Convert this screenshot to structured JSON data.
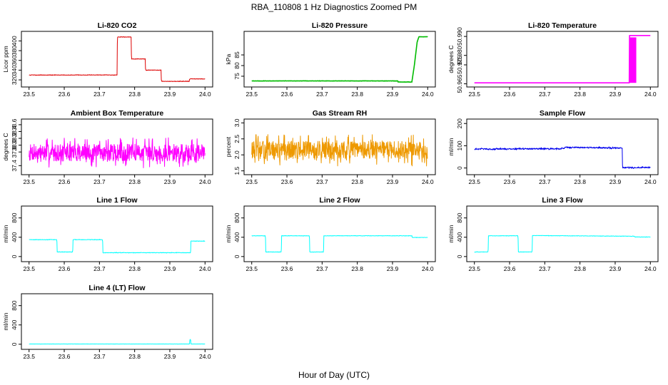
{
  "figure": {
    "title": "RBA_110808  1 Hz Diagnostics Zoomed PM",
    "xlabel": "Hour of Day (UTC)"
  },
  "chart_data": [
    {
      "type": "line",
      "title": "Li-820 CO2",
      "ylabel": "Licor ppm",
      "color": "#dd0000",
      "xlim": [
        23.5,
        24.0
      ],
      "ylim": [
        310,
        415
      ],
      "xticks": [
        "23.5",
        "23.6",
        "23.7",
        "23.8",
        "23.9",
        "24.0"
      ],
      "yticks": [
        "320",
        "340",
        "360",
        "380",
        "400"
      ],
      "noise": 0.8,
      "series": [
        {
          "name": "CO2",
          "x": [
            23.5,
            23.75,
            23.751,
            23.79,
            23.791,
            23.83,
            23.831,
            23.875,
            23.876,
            23.955,
            23.956,
            24.0
          ],
          "values": [
            330,
            330,
            408,
            408,
            363,
            363,
            340,
            340,
            317,
            317,
            322,
            322
          ]
        }
      ]
    },
    {
      "type": "line",
      "title": "Li-820 Pressure",
      "ylabel": "kPa",
      "color": "#00bb00",
      "xlim": [
        23.5,
        24.0
      ],
      "ylim": [
        71,
        95
      ],
      "xticks": [
        "23.5",
        "23.6",
        "23.7",
        "23.8",
        "23.9",
        "24.0"
      ],
      "yticks": [
        "75",
        "80",
        "85"
      ],
      "noise": 0.1,
      "series": [
        {
          "name": "Pressure",
          "x": [
            23.5,
            23.915,
            23.915,
            23.955,
            23.962,
            23.97,
            23.975,
            24.0
          ],
          "values": [
            72.8,
            72.8,
            72.3,
            72.3,
            80,
            91,
            93.5,
            93.5
          ]
        }
      ]
    },
    {
      "type": "line",
      "title": "Li-820 Temperature",
      "ylabel": "degrees C",
      "color": "#ff00ff",
      "xlim": [
        23.5,
        24.0
      ],
      "ylim": [
        50.9645,
        50.9915
      ],
      "xticks": [
        "23.5",
        "23.6",
        "23.7",
        "23.8",
        "23.9",
        "24.0"
      ],
      "yticks": [
        "50.965",
        "50.975",
        "50.980",
        "50.990"
      ],
      "noise": 0,
      "series": [
        {
          "name": "Temperature",
          "x": [
            23.5,
            23.94,
            23.94,
            23.96,
            23.96,
            24.0
          ],
          "values": [
            50.9655,
            50.9655,
            50.9905,
            50.9905,
            50.9905,
            50.9905
          ]
        }
      ],
      "band": {
        "x0": 23.94,
        "x1": 23.96,
        "y0": 50.9655,
        "y1": 50.9895
      }
    },
    {
      "type": "line",
      "title": "Ambient Box Temperature",
      "ylabel": "degrees C",
      "color": "#ff00ff",
      "xlim": [
        23.5,
        24.0
      ],
      "ylim": [
        37.2,
        38.7
      ],
      "xticks": [
        "23.5",
        "23.6",
        "23.7",
        "23.8",
        "23.9",
        "24.0"
      ],
      "yticks": [
        "37.4",
        "37.8",
        "38.0",
        "38.2",
        "38.4",
        "38.6"
      ],
      "noise": 0.45,
      "noise_seed": 7,
      "series": [
        {
          "name": "Box Temperature",
          "x": [
            23.5,
            24.0
          ],
          "values": [
            37.78,
            37.78
          ]
        }
      ]
    },
    {
      "type": "line",
      "title": "Gas Stream RH",
      "ylabel": "percent",
      "color": "#ee9900",
      "xlim": [
        23.5,
        24.0
      ],
      "ylim": [
        1.45,
        3.05
      ],
      "xticks": [
        "23.5",
        "23.6",
        "23.7",
        "23.8",
        "23.9",
        "24.0"
      ],
      "yticks": [
        "1.5",
        "2.0",
        "2.5",
        "3.0"
      ],
      "noise": 0.5,
      "noise_seed": 13,
      "series": [
        {
          "name": "RH",
          "x": [
            23.5,
            24.0
          ],
          "values": [
            2.15,
            2.15
          ]
        }
      ]
    },
    {
      "type": "line",
      "title": "Sample Flow",
      "ylabel": "ml/min",
      "color": "#0000ee",
      "xlim": [
        23.5,
        24.0
      ],
      "ylim": [
        -20,
        210
      ],
      "xticks": [
        "23.5",
        "23.6",
        "23.7",
        "23.8",
        "23.9",
        "24.0"
      ],
      "yticks": [
        "0",
        "100",
        "200"
      ],
      "noise": 5,
      "series": [
        {
          "name": "Sample Flow",
          "x": [
            23.5,
            23.75,
            23.76,
            23.92,
            23.921,
            24.0
          ],
          "values": [
            85,
            87,
            93,
            90,
            2,
            2
          ]
        }
      ]
    },
    {
      "type": "line",
      "title": "Line 1 Flow",
      "ylabel": "ml/min",
      "color": "#00ffff",
      "xlim": [
        23.5,
        24.0
      ],
      "ylim": [
        -60,
        1000
      ],
      "xticks": [
        "23.5",
        "23.6",
        "23.7",
        "23.8",
        "23.9",
        "24.0"
      ],
      "yticks": [
        "0",
        "400",
        "800"
      ],
      "noise": 8,
      "series": [
        {
          "name": "Line 1",
          "x": [
            23.5,
            23.579,
            23.58,
            23.624,
            23.625,
            23.709,
            23.71,
            23.959,
            23.96,
            24.0
          ],
          "values": [
            350,
            350,
            95,
            95,
            350,
            350,
            80,
            80,
            320,
            320
          ]
        }
      ]
    },
    {
      "type": "line",
      "title": "Line 2 Flow",
      "ylabel": "ml/min",
      "color": "#00ffff",
      "xlim": [
        23.5,
        24.0
      ],
      "ylim": [
        -60,
        1000
      ],
      "xticks": [
        "23.5",
        "23.6",
        "23.7",
        "23.8",
        "23.9",
        "24.0"
      ],
      "yticks": [
        "0",
        "400",
        "800"
      ],
      "noise": 6,
      "series": [
        {
          "name": "Line 2",
          "x": [
            23.5,
            23.539,
            23.54,
            23.584,
            23.585,
            23.664,
            23.665,
            23.704,
            23.705,
            23.955,
            23.956,
            24.0
          ],
          "values": [
            430,
            430,
            95,
            95,
            430,
            430,
            95,
            95,
            430,
            430,
            395,
            395
          ]
        }
      ]
    },
    {
      "type": "line",
      "title": "Line 3 Flow",
      "ylabel": "ml/min",
      "color": "#00ffff",
      "xlim": [
        23.5,
        24.0
      ],
      "ylim": [
        -60,
        1000
      ],
      "xticks": [
        "23.5",
        "23.6",
        "23.7",
        "23.8",
        "23.9",
        "24.0"
      ],
      "yticks": [
        "0",
        "400",
        "800"
      ],
      "noise": 6,
      "series": [
        {
          "name": "Line 3",
          "x": [
            23.5,
            23.539,
            23.54,
            23.624,
            23.625,
            23.664,
            23.665,
            23.955,
            23.956,
            24.0
          ],
          "values": [
            95,
            95,
            430,
            430,
            95,
            95,
            435,
            420,
            405,
            405
          ]
        }
      ]
    },
    {
      "type": "line",
      "title": "Line 4 (LT) Flow",
      "ylabel": "ml/min",
      "color": "#00ffff",
      "xlim": [
        23.5,
        24.0
      ],
      "ylim": [
        -60,
        1000
      ],
      "xticks": [
        "23.5",
        "23.6",
        "23.7",
        "23.8",
        "23.9",
        "24.0"
      ],
      "yticks": [
        "0",
        "400",
        "800"
      ],
      "noise": 3,
      "series": [
        {
          "name": "Line 4",
          "x": [
            23.5,
            23.956,
            23.957,
            23.959,
            23.96,
            24.0
          ],
          "values": [
            5,
            5,
            100,
            100,
            5,
            5
          ]
        }
      ]
    }
  ]
}
